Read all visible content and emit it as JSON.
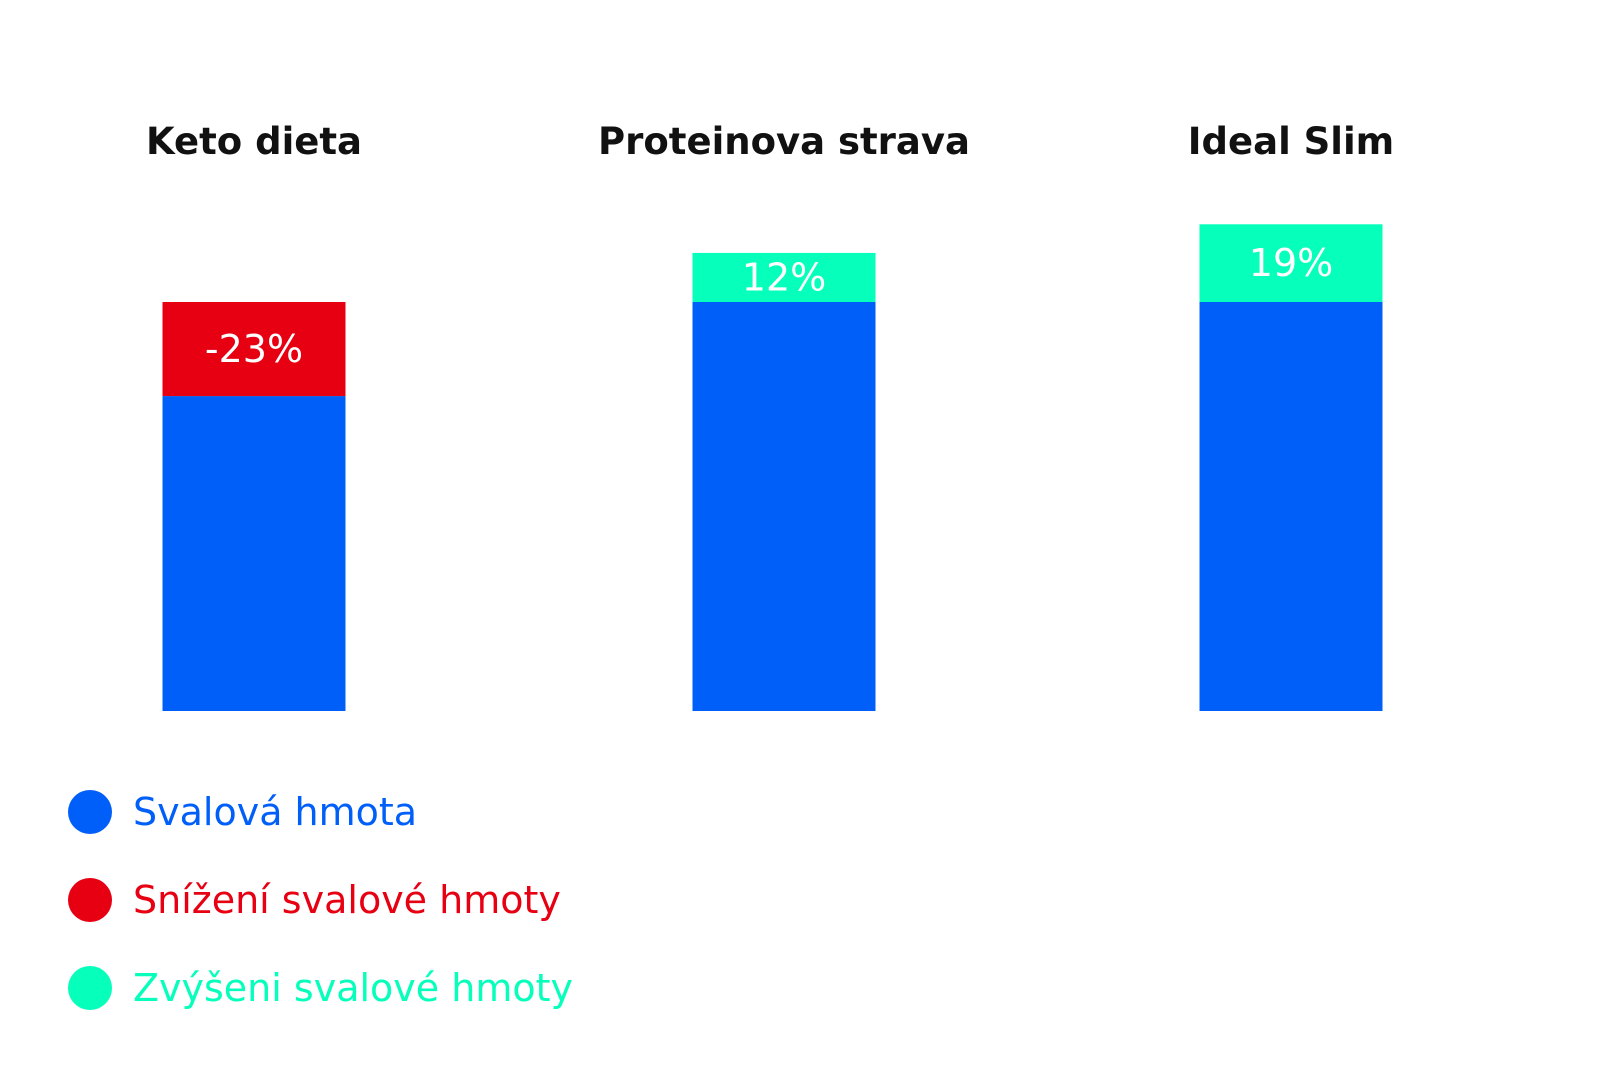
{
  "chart_data": {
    "type": "bar",
    "stacked": true,
    "title": "",
    "xlabel": "",
    "ylabel": "",
    "ylim": [
      0,
      100
    ],
    "grid": false,
    "legend_placement": "bottom-left",
    "categories": [
      "Keto dieta",
      "Proteinova strava",
      "Ideal Slim"
    ],
    "base_values": [
      100,
      100,
      100
    ],
    "change_values": [
      -23,
      12,
      19
    ],
    "change_labels": [
      "-23%",
      "12%",
      "19%"
    ],
    "series": [
      {
        "name": "Svalová hmota",
        "color": "#005ff9"
      },
      {
        "name": "Snížení svalové hmoty",
        "color": "#e60012"
      },
      {
        "name": "Zvýšeni svalové hmoty",
        "color": "#06ffbb"
      }
    ]
  }
}
